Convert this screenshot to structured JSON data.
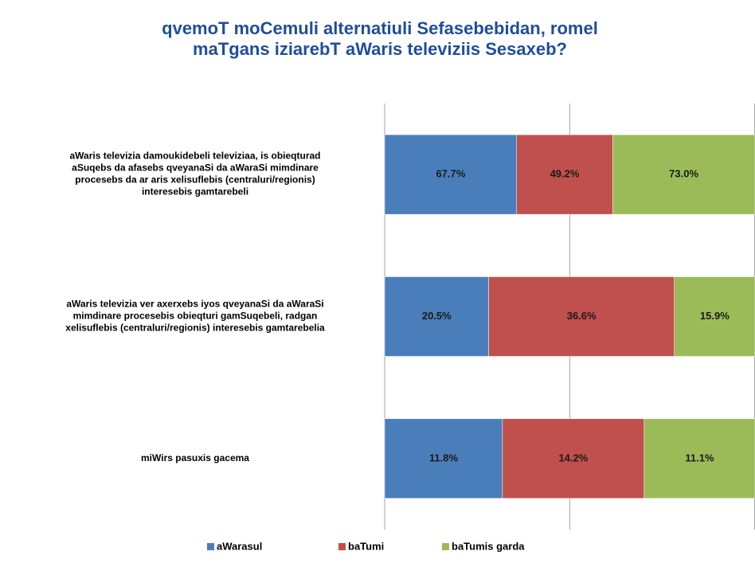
{
  "chart_data": {
    "type": "bar",
    "orientation": "horizontal",
    "stacked": "percent",
    "title": "qvemoT moCemuli alternatiuli Sefasebebidan, romel maTgans iziarebT aWaris televiziis Sesaxeb?",
    "categories": [
      "aWaris televizia damoukidebeli televiziaa, is obieqturad aSuqebs da afasebs qveyanaSi da aWaraSi mimdinare procesebs da ar aris xelisuflebis (centraluri/regionis) interesebis gamtarebeli",
      "aWaris televizia ver axerxebs iyos qveyanaSi da aWaraSi mimdinare procesebis obieqturi gamSuqebeli, radgan xelisuflebis (centraluri/regionis) interesebis gamtarebelia",
      "miWirs pasuxis gacema"
    ],
    "series": [
      {
        "name": "aWarasul",
        "color": "#4a7ebb",
        "values": [
          67.7,
          20.5,
          11.8
        ],
        "value_labels": [
          "67.7%",
          "20.5%",
          "11.8%"
        ]
      },
      {
        "name": "baTumi",
        "color": "#c0504d",
        "values": [
          49.2,
          36.6,
          14.2
        ],
        "value_labels": [
          "49.2%",
          "36.6%",
          "14.2%"
        ]
      },
      {
        "name": "baTumis garda",
        "color": "#9bbb59",
        "values": [
          73.0,
          15.9,
          11.1
        ],
        "value_labels": [
          "73.0%",
          "15.9%",
          "11.1%"
        ]
      }
    ],
    "xlim": [
      0,
      100
    ],
    "xticks": [
      0,
      50,
      100
    ],
    "grid": true,
    "legend": "bottom"
  }
}
